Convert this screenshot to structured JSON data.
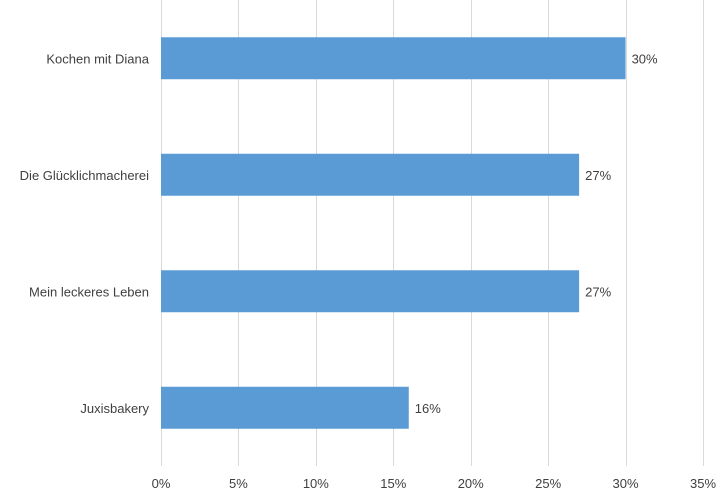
{
  "chart_data": {
    "type": "bar",
    "orientation": "horizontal",
    "categories": [
      "Kochen mit Diana",
      "Die Glücklichmacherei",
      "Mein leckeres Leben",
      "Juxisbakery"
    ],
    "values": [
      30,
      27,
      27,
      16
    ],
    "value_labels": [
      "30%",
      "27%",
      "27%",
      "16%"
    ],
    "xlim": [
      0,
      35
    ],
    "x_ticks": [
      0,
      5,
      10,
      15,
      20,
      25,
      30,
      35
    ],
    "x_tick_labels": [
      "0%",
      "5%",
      "10%",
      "15%",
      "20%",
      "25%",
      "30%",
      "35%"
    ],
    "grid": "vertical",
    "legend": "none",
    "title": "",
    "xlabel": "",
    "ylabel": "",
    "colors": {
      "bar": "#5b9bd5",
      "grid": "#d9d9d9",
      "text": "#404040"
    }
  }
}
